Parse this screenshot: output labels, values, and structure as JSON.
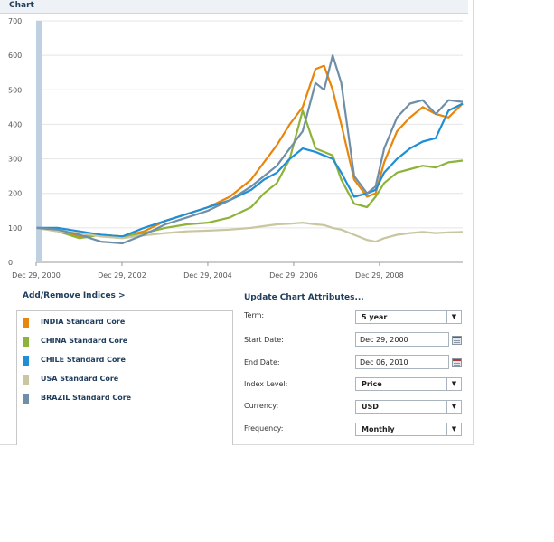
{
  "header": {
    "title": "Chart"
  },
  "chart_data": {
    "type": "line",
    "ylim": [
      0,
      700
    ],
    "yticks": [
      "0",
      "100",
      "200",
      "300",
      "400",
      "500",
      "600",
      "700"
    ],
    "xlabels": [
      "Dec 29, 2000",
      "Dec 29, 2002",
      "Dec 29, 2004",
      "Dec 29, 2006",
      "Dec 29, 2008"
    ],
    "x_start": 2000.99,
    "x_end": 2010.93,
    "series": [
      {
        "name": "INDIA Standard Core",
        "color": "#e8860c",
        "x": [
          2001.0,
          2001.5,
          2002.0,
          2002.5,
          2003.0,
          2003.5,
          2004.0,
          2004.5,
          2005.0,
          2005.5,
          2006.0,
          2006.3,
          2006.6,
          2006.9,
          2007.2,
          2007.5,
          2007.7,
          2007.9,
          2008.1,
          2008.4,
          2008.7,
          2008.9,
          2009.1,
          2009.4,
          2009.7,
          2010.0,
          2010.3,
          2010.6,
          2010.93
        ],
        "values": [
          100,
          95,
          75,
          80,
          75,
          90,
          120,
          140,
          160,
          190,
          240,
          290,
          340,
          400,
          450,
          560,
          570,
          500,
          400,
          240,
          190,
          200,
          290,
          380,
          420,
          450,
          430,
          420,
          460
        ]
      },
      {
        "name": "CHINA Standard Core",
        "color": "#8db33b",
        "x": [
          2001.0,
          2001.5,
          2002.0,
          2002.5,
          2003.0,
          2003.5,
          2004.0,
          2004.5,
          2005.0,
          2005.5,
          2006.0,
          2006.3,
          2006.6,
          2006.9,
          2007.2,
          2007.5,
          2007.7,
          2007.9,
          2008.1,
          2008.4,
          2008.7,
          2008.9,
          2009.1,
          2009.4,
          2009.7,
          2010.0,
          2010.3,
          2010.6,
          2010.93
        ],
        "values": [
          100,
          90,
          70,
          80,
          75,
          85,
          100,
          110,
          115,
          130,
          160,
          200,
          230,
          300,
          440,
          330,
          320,
          310,
          240,
          170,
          160,
          190,
          230,
          260,
          270,
          280,
          275,
          290,
          295
        ]
      },
      {
        "name": "CHILE Standard Core",
        "color": "#1e8fd6",
        "x": [
          2001.0,
          2001.5,
          2002.0,
          2002.5,
          2003.0,
          2003.5,
          2004.0,
          2004.5,
          2005.0,
          2005.5,
          2006.0,
          2006.3,
          2006.6,
          2006.9,
          2007.2,
          2007.5,
          2007.7,
          2007.9,
          2008.1,
          2008.4,
          2008.7,
          2008.9,
          2009.1,
          2009.4,
          2009.7,
          2010.0,
          2010.3,
          2010.6,
          2010.93
        ],
        "values": [
          100,
          100,
          90,
          80,
          75,
          100,
          120,
          140,
          160,
          180,
          210,
          240,
          260,
          300,
          330,
          320,
          310,
          300,
          260,
          190,
          200,
          210,
          260,
          300,
          330,
          350,
          360,
          440,
          460
        ]
      },
      {
        "name": "USA Standard Core",
        "color": "#c9c6a0",
        "x": [
          2001.0,
          2001.5,
          2002.0,
          2002.5,
          2003.0,
          2003.5,
          2004.0,
          2004.5,
          2005.0,
          2005.5,
          2006.0,
          2006.3,
          2006.6,
          2006.9,
          2007.2,
          2007.5,
          2007.7,
          2007.9,
          2008.1,
          2008.4,
          2008.7,
          2008.9,
          2009.1,
          2009.4,
          2009.7,
          2010.0,
          2010.3,
          2010.6,
          2010.93
        ],
        "values": [
          100,
          90,
          85,
          75,
          70,
          78,
          85,
          90,
          92,
          95,
          100,
          105,
          110,
          112,
          115,
          110,
          108,
          100,
          95,
          80,
          65,
          60,
          70,
          80,
          85,
          88,
          85,
          87,
          88
        ]
      },
      {
        "name": "BRAZIL Standard Core",
        "color": "#6f8fa8",
        "x": [
          2001.0,
          2001.5,
          2002.0,
          2002.5,
          2003.0,
          2003.5,
          2004.0,
          2004.5,
          2005.0,
          2005.5,
          2006.0,
          2006.3,
          2006.6,
          2006.9,
          2007.2,
          2007.5,
          2007.7,
          2007.9,
          2008.1,
          2008.4,
          2008.7,
          2008.9,
          2009.1,
          2009.4,
          2009.7,
          2010.0,
          2010.3,
          2010.6,
          2010.93
        ],
        "values": [
          100,
          95,
          80,
          60,
          55,
          80,
          110,
          130,
          150,
          180,
          220,
          250,
          280,
          330,
          380,
          520,
          500,
          600,
          520,
          250,
          200,
          220,
          330,
          420,
          460,
          470,
          430,
          470,
          465
        ]
      }
    ]
  },
  "links": {
    "add_remove": "Add/Remove Indices >",
    "update": "Update Chart Attributes..."
  },
  "legend": [
    {
      "label": "INDIA Standard Core",
      "color": "#e8860c"
    },
    {
      "label": "CHINA Standard Core",
      "color": "#8db33b"
    },
    {
      "label": "CHILE Standard Core",
      "color": "#1e8fd6"
    },
    {
      "label": "USA Standard Core",
      "color": "#c9c6a0"
    },
    {
      "label": "BRAZIL Standard Core",
      "color": "#6f8fa8"
    }
  ],
  "form": {
    "term_label": "Term:",
    "term_value": "5 year",
    "start_label": "Start Date:",
    "start_value": "Dec 29, 2000",
    "end_label": "End Date:",
    "end_value": "Dec 06, 2010",
    "index_label": "Index Level:",
    "index_value": "Price",
    "currency_label": "Currency:",
    "currency_value": "USD",
    "frequency_label": "Frequency:",
    "frequency_value": "Monthly"
  }
}
